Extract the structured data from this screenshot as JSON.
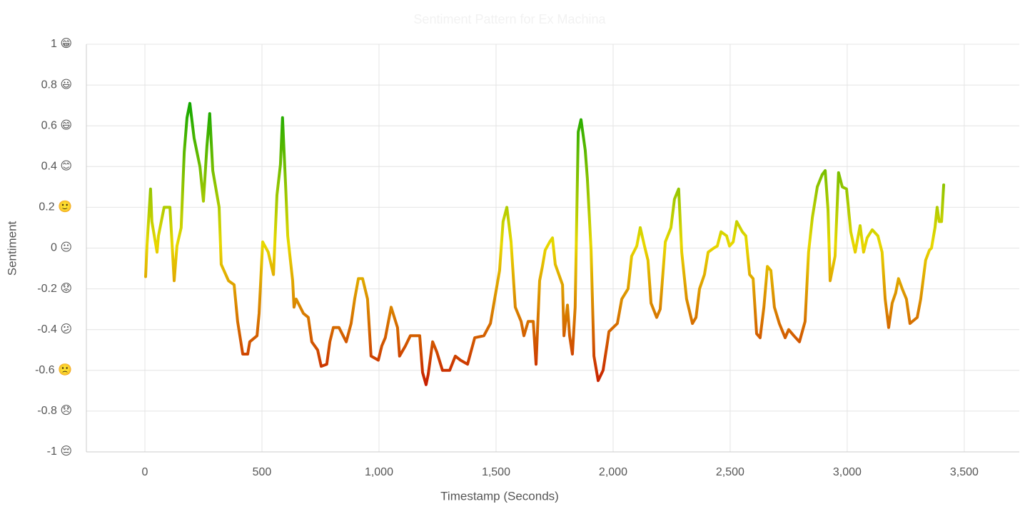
{
  "chart_data": {
    "type": "line",
    "title": "Sentiment Pattern for Ex Machina",
    "x_label": "Timestamp (Seconds)",
    "y_label": "Sentiment",
    "xlim": [
      -250,
      3735
    ],
    "ylim": [
      -1,
      1
    ],
    "xticks": [
      0,
      500,
      {
        "value": 1000,
        "label": "1,000"
      },
      {
        "value": 1500,
        "label": "1,500"
      },
      {
        "value": 2000,
        "label": "2,000"
      },
      {
        "value": 2500,
        "label": "2,500"
      },
      {
        "value": 3000,
        "label": "3,000"
      },
      {
        "value": 3500,
        "label": "3,500"
      }
    ],
    "yticks": [
      {
        "value": 1,
        "label": "1 😁"
      },
      {
        "value": 0.8,
        "label": "0.8 😃"
      },
      {
        "value": 0.6,
        "label": "0.6 😄"
      },
      {
        "value": 0.4,
        "label": "0.4 😊"
      },
      {
        "value": 0.2,
        "label": "0.2 🙂"
      },
      {
        "value": 0,
        "label": "0 😐"
      },
      {
        "value": -0.2,
        "label": "-0.2 😟"
      },
      {
        "value": -0.4,
        "label": "-0.4 😕"
      },
      {
        "value": -0.6,
        "label": "-0.6 🙁"
      },
      {
        "value": -0.8,
        "label": "-0.8 😞"
      },
      {
        "value": -1,
        "label": "-1 😔"
      }
    ],
    "grid": true,
    "gradient_colors": [
      "#12a800",
      "#e8d800",
      "#c81e00"
    ],
    "x": [
      3,
      9,
      24,
      30,
      52,
      58,
      82,
      107,
      125,
      137,
      155,
      168,
      180,
      192,
      210,
      235,
      250,
      265,
      277,
      290,
      317,
      326,
      357,
      381,
      396,
      418,
      439,
      448,
      479,
      488,
      503,
      527,
      549,
      564,
      579,
      588,
      601,
      610,
      631,
      637,
      646,
      677,
      698,
      713,
      738,
      753,
      777,
      790,
      805,
      829,
      860,
      881,
      896,
      912,
      930,
      951,
      966,
      997,
      1012,
      1027,
      1052,
      1079,
      1088,
      1113,
      1134,
      1174,
      1186,
      1201,
      1210,
      1229,
      1247,
      1271,
      1302,
      1326,
      1348,
      1378,
      1409,
      1448,
      1476,
      1491,
      1515,
      1530,
      1546,
      1564,
      1582,
      1607,
      1619,
      1637,
      1659,
      1671,
      1686,
      1698,
      1710,
      1729,
      1741,
      1753,
      1784,
      1790,
      1805,
      1814,
      1826,
      1838,
      1851,
      1863,
      1881,
      1890,
      1906,
      1918,
      1936,
      1957,
      1976,
      1982,
      2018,
      2037,
      2064,
      2079,
      2101,
      2116,
      2134,
      2149,
      2162,
      2186,
      2201,
      2223,
      2247,
      2262,
      2280,
      2293,
      2314,
      2339,
      2354,
      2369,
      2390,
      2406,
      2430,
      2445,
      2461,
      2485,
      2497,
      2513,
      2528,
      2552,
      2567,
      2583,
      2598,
      2613,
      2628,
      2644,
      2659,
      2674,
      2689,
      2710,
      2735,
      2750,
      2772,
      2796,
      2820,
      2835,
      2851,
      2872,
      2893,
      2906,
      2918,
      2927,
      2948,
      2963,
      2979,
      2997,
      3015,
      3034,
      3055,
      3070,
      3085,
      3107,
      3131,
      3149,
      3162,
      3177,
      3192,
      3207,
      3219,
      3235,
      3253,
      3268,
      3299,
      3314,
      3335,
      3351,
      3360,
      3375,
      3384,
      3393,
      3403,
      3412
    ],
    "values": [
      -0.14,
      0.01,
      0.29,
      0.13,
      -0.02,
      0.06,
      0.2,
      0.2,
      -0.16,
      0.01,
      0.1,
      0.47,
      0.64,
      0.71,
      0.54,
      0.4,
      0.23,
      0.5,
      0.66,
      0.38,
      0.2,
      -0.08,
      -0.16,
      -0.18,
      -0.36,
      -0.52,
      -0.52,
      -0.46,
      -0.43,
      -0.32,
      0.03,
      -0.02,
      -0.13,
      0.26,
      0.41,
      0.64,
      0.31,
      0.06,
      -0.16,
      -0.29,
      -0.25,
      -0.32,
      -0.34,
      -0.46,
      -0.5,
      -0.58,
      -0.57,
      -0.46,
      -0.39,
      -0.39,
      -0.46,
      -0.37,
      -0.25,
      -0.15,
      -0.15,
      -0.25,
      -0.53,
      -0.55,
      -0.48,
      -0.44,
      -0.29,
      -0.39,
      -0.53,
      -0.48,
      -0.43,
      -0.43,
      -0.61,
      -0.67,
      -0.62,
      -0.46,
      -0.51,
      -0.6,
      -0.6,
      -0.53,
      -0.55,
      -0.57,
      -0.44,
      -0.43,
      -0.37,
      -0.27,
      -0.11,
      0.13,
      0.2,
      0.03,
      -0.29,
      -0.36,
      -0.43,
      -0.36,
      -0.36,
      -0.57,
      -0.16,
      -0.09,
      -0.01,
      0.03,
      0.05,
      -0.08,
      -0.18,
      -0.43,
      -0.28,
      -0.43,
      -0.52,
      -0.29,
      0.57,
      0.63,
      0.48,
      0.34,
      -0.01,
      -0.53,
      -0.65,
      -0.6,
      -0.46,
      -0.41,
      -0.37,
      -0.25,
      -0.2,
      -0.04,
      0.01,
      0.1,
      0.01,
      -0.06,
      -0.27,
      -0.34,
      -0.3,
      0.03,
      0.1,
      0.24,
      0.29,
      -0.02,
      -0.25,
      -0.37,
      -0.34,
      -0.2,
      -0.13,
      -0.02,
      0.0,
      0.01,
      0.08,
      0.06,
      0.01,
      0.03,
      0.13,
      0.08,
      0.06,
      -0.13,
      -0.15,
      -0.42,
      -0.44,
      -0.29,
      -0.09,
      -0.11,
      -0.29,
      -0.37,
      -0.44,
      -0.4,
      -0.43,
      -0.46,
      -0.36,
      -0.02,
      0.15,
      0.3,
      0.36,
      0.38,
      0.19,
      -0.16,
      -0.04,
      0.37,
      0.3,
      0.29,
      0.08,
      -0.02,
      0.11,
      -0.02,
      0.05,
      0.09,
      0.06,
      -0.02,
      -0.25,
      -0.39,
      -0.27,
      -0.22,
      -0.15,
      -0.2,
      -0.25,
      -0.37,
      -0.34,
      -0.25,
      -0.06,
      -0.01,
      0.0,
      0.1,
      0.2,
      0.13,
      0.13,
      0.31
    ]
  }
}
